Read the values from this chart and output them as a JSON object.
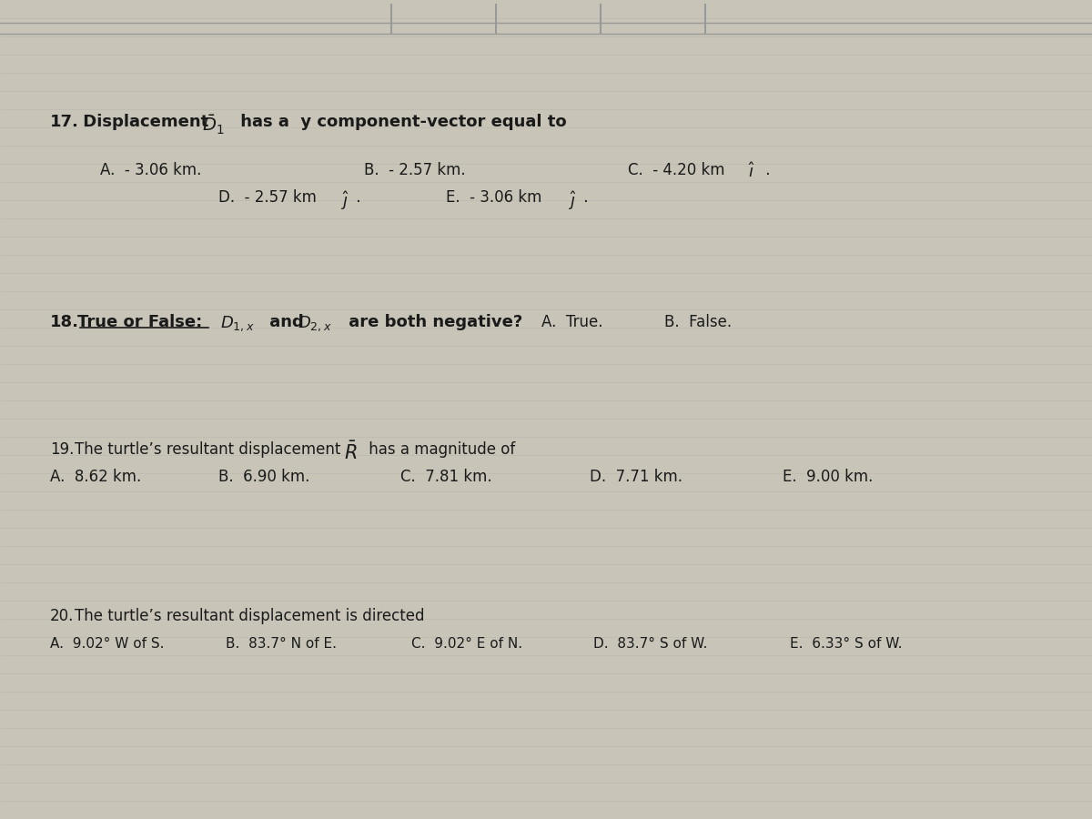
{
  "background_color": "#c8c4b8",
  "text_color": "#1a1a1a",
  "grid_color": "#b0aa9f",
  "q17_num": "17.",
  "q17_text": " Displacement ",
  "q17_rest": " has a  y component-vector equal to",
  "q17_a": "A.  - 3.06 km.",
  "q17_b": "B.  - 2.57 km.",
  "q17_c_pre": "C.  - 4.20 km ",
  "q17_c_post": " .",
  "q17_d_pre": "D.  - 2.57 km ",
  "q17_d_post": " .",
  "q17_e_pre": "E.  - 3.06 km ",
  "q17_e_post": " .",
  "q18_num": "18.",
  "q18_label": "True or False:",
  "q18_formula": " and ",
  "q18_question": " are both negative?",
  "q18_a": "A.  True.",
  "q18_b": "B.  False.",
  "q19_num": "19.",
  "q19_text_pre": "The turtle’s resultant displacement ",
  "q19_text_post": " has a magnitude of",
  "q19_a": "A.  8.62 km.",
  "q19_b": "B.  6.90 km.",
  "q19_c": "C.  7.81 km.",
  "q19_d": "D.  7.71 km.",
  "q19_e": "E.  9.00 km.",
  "q20_num": "20.",
  "q20_text": "The turtle’s resultant displacement is directed",
  "q20_a": "A.  9.02° W of S.",
  "q20_b": "B.  83.7° N of E.",
  "q20_c": "C.  9.02° E of N.",
  "q20_d": "D.  83.7° S of W.",
  "q20_e": "E.  6.33° S of W."
}
